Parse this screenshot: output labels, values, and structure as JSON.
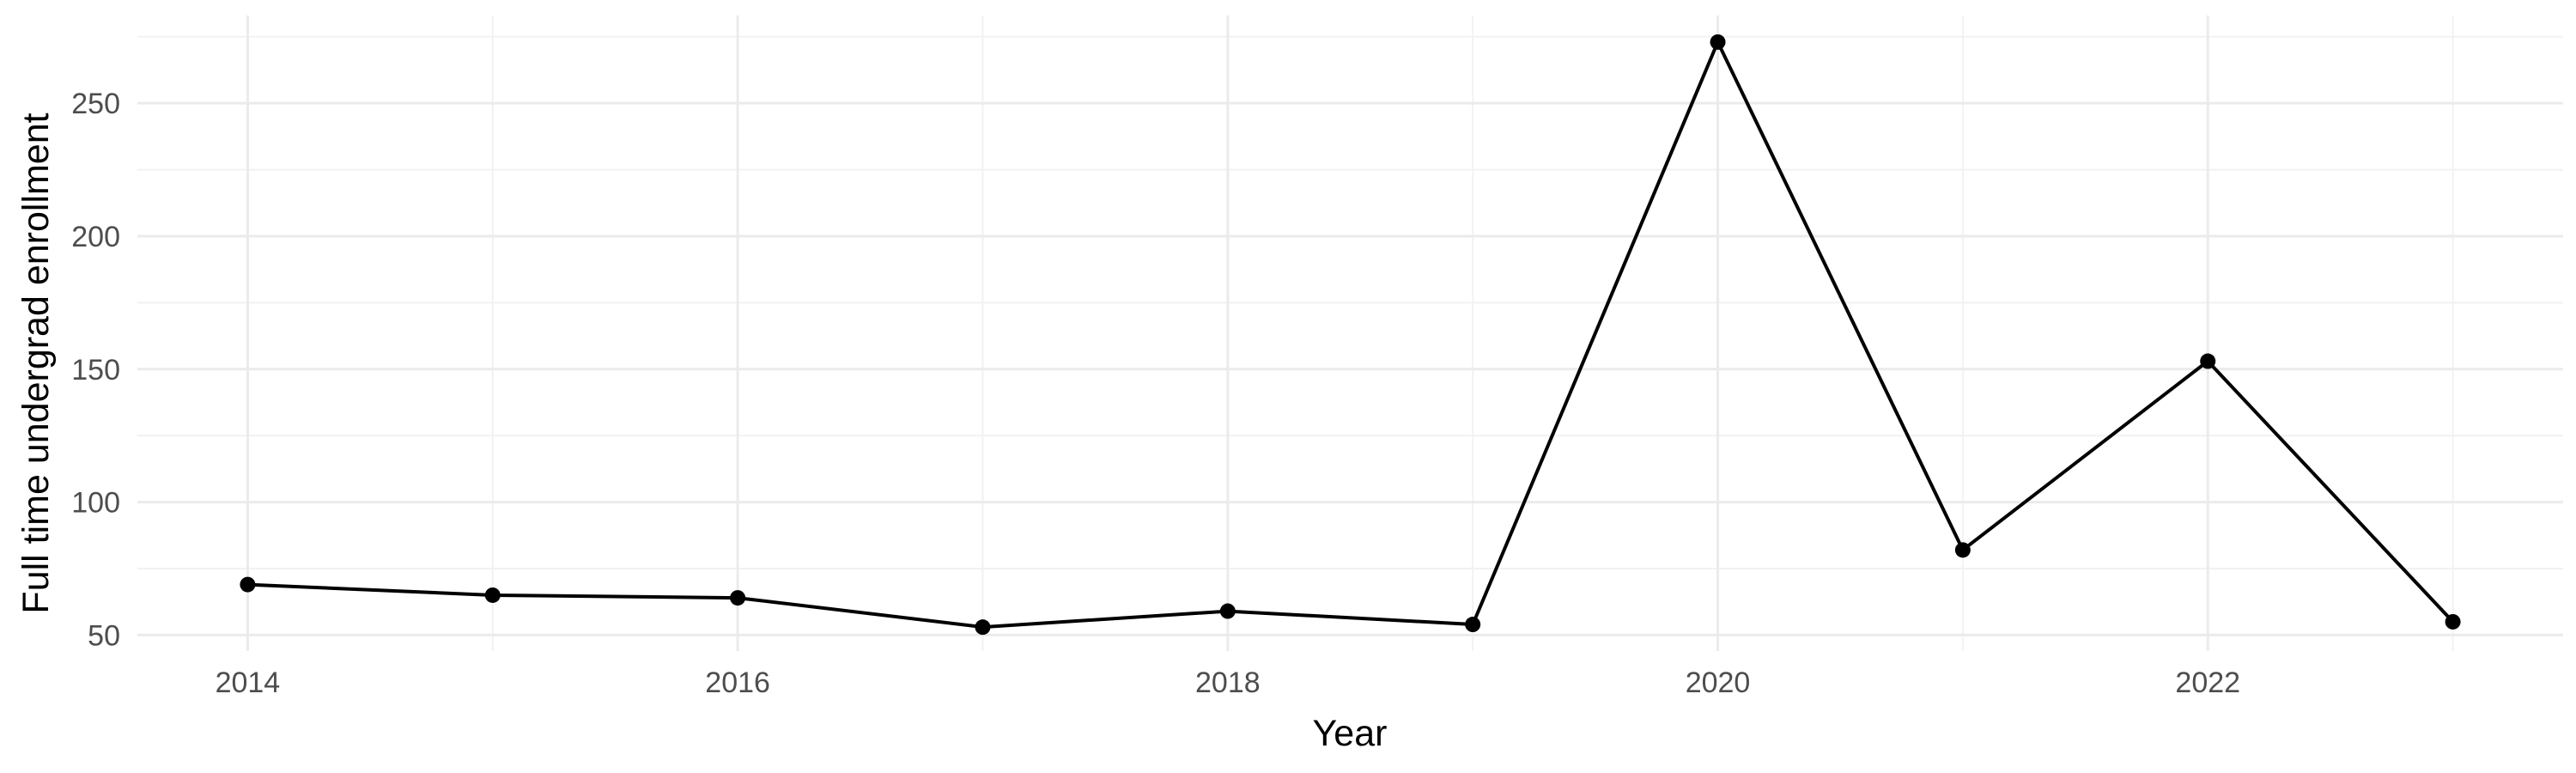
{
  "chart_data": {
    "type": "line",
    "title": "",
    "xlabel": "Year",
    "ylabel": "Full time undergrad enrollment",
    "x": [
      2014,
      2015,
      2016,
      2017,
      2018,
      2019,
      2020,
      2021,
      2022,
      2023
    ],
    "series": [
      {
        "name": "",
        "values": [
          69,
          65,
          64,
          53,
          59,
          54,
          273,
          82,
          153,
          55
        ]
      }
    ],
    "xlim": [
      2013.55,
      2023.45
    ],
    "ylim": [
      44,
      283
    ],
    "x_ticks": [
      2014,
      2016,
      2018,
      2020,
      2022
    ],
    "x_tick_labels": [
      "2014",
      "2016",
      "2018",
      "2020",
      "2022"
    ],
    "x_minor_ticks": [
      2015,
      2017,
      2019,
      2021,
      2023
    ],
    "y_ticks": [
      50,
      100,
      150,
      200,
      250
    ],
    "y_tick_labels": [
      "50",
      "100",
      "150",
      "200",
      "250"
    ],
    "y_minor_ticks": [
      75,
      125,
      175,
      225,
      275
    ],
    "grid": true,
    "legend": "none",
    "colors": {
      "line": "#000000",
      "point": "#000000",
      "grid_major": "#ebebeb",
      "grid_minor": "#f2f2f2",
      "tick_text": "#4d4d4d",
      "background": "#ffffff"
    }
  }
}
